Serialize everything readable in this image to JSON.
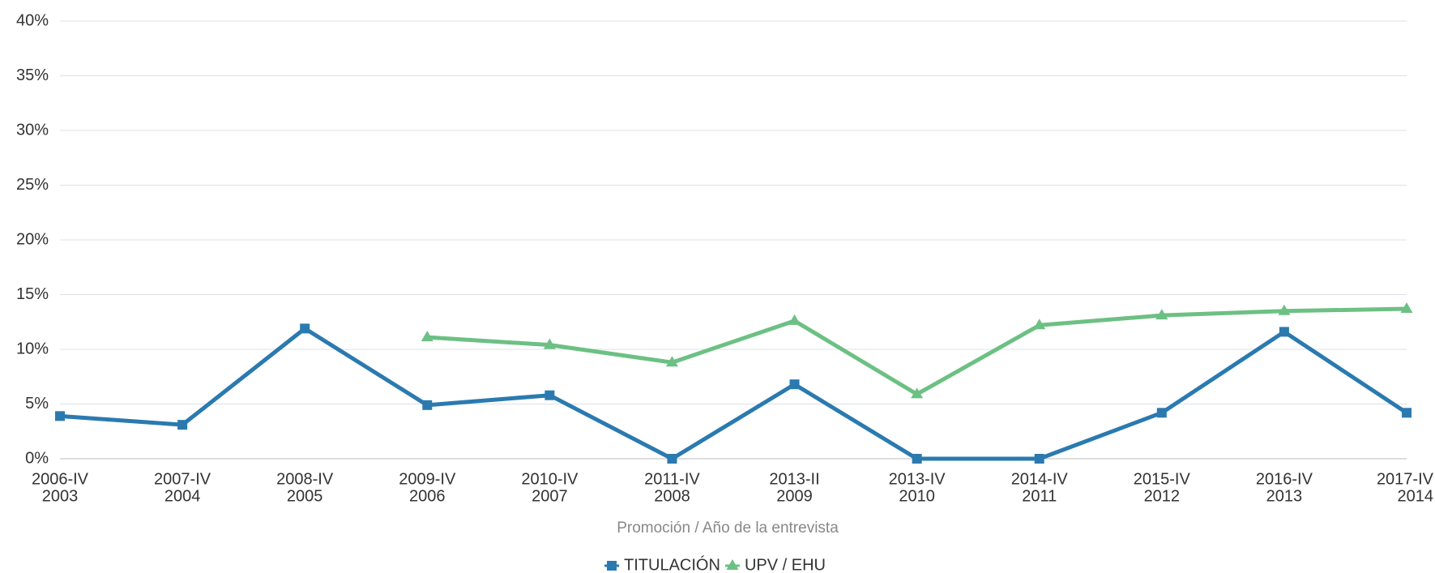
{
  "chart_data": {
    "type": "line",
    "x_label": "Promoción / Año de la entrevista",
    "categories": [
      [
        "2006-IV",
        "2003"
      ],
      [
        "2007-IV",
        "2004"
      ],
      [
        "2008-IV",
        "2005"
      ],
      [
        "2009-IV",
        "2006"
      ],
      [
        "2010-IV",
        "2007"
      ],
      [
        "2011-IV",
        "2008"
      ],
      [
        "2013-II",
        "2009"
      ],
      [
        "2013-IV",
        "2010"
      ],
      [
        "2014-IV",
        "2011"
      ],
      [
        "2015-IV",
        "2012"
      ],
      [
        "2016-IV",
        "2013"
      ],
      [
        "2017-IV",
        "2014"
      ]
    ],
    "series": [
      {
        "name": "TITULACIÓN",
        "color": "#2a7ab0",
        "marker": "square",
        "values": [
          3.9,
          3.1,
          11.9,
          4.9,
          5.8,
          0,
          6.8,
          0,
          0,
          4.2,
          11.6,
          4.2
        ]
      },
      {
        "name": "UPV / EHU",
        "color": "#6cc083",
        "marker": "triangle",
        "values": [
          null,
          null,
          null,
          11.1,
          10.4,
          8.8,
          12.6,
          5.9,
          12.2,
          13.1,
          13.5,
          13.7
        ]
      }
    ],
    "ylim": [
      0,
      40
    ],
    "yticks": [
      {
        "value": 0,
        "label": "0%"
      },
      {
        "value": 5,
        "label": "5%"
      },
      {
        "value": 10,
        "label": "10%"
      },
      {
        "value": 15,
        "label": "15%"
      },
      {
        "value": 20,
        "label": "20%"
      },
      {
        "value": 25,
        "label": "25%"
      },
      {
        "value": 30,
        "label": "30%"
      },
      {
        "value": 35,
        "label": "35%"
      },
      {
        "value": 40,
        "label": "40%"
      }
    ],
    "grid": true,
    "legend": "bottom"
  }
}
